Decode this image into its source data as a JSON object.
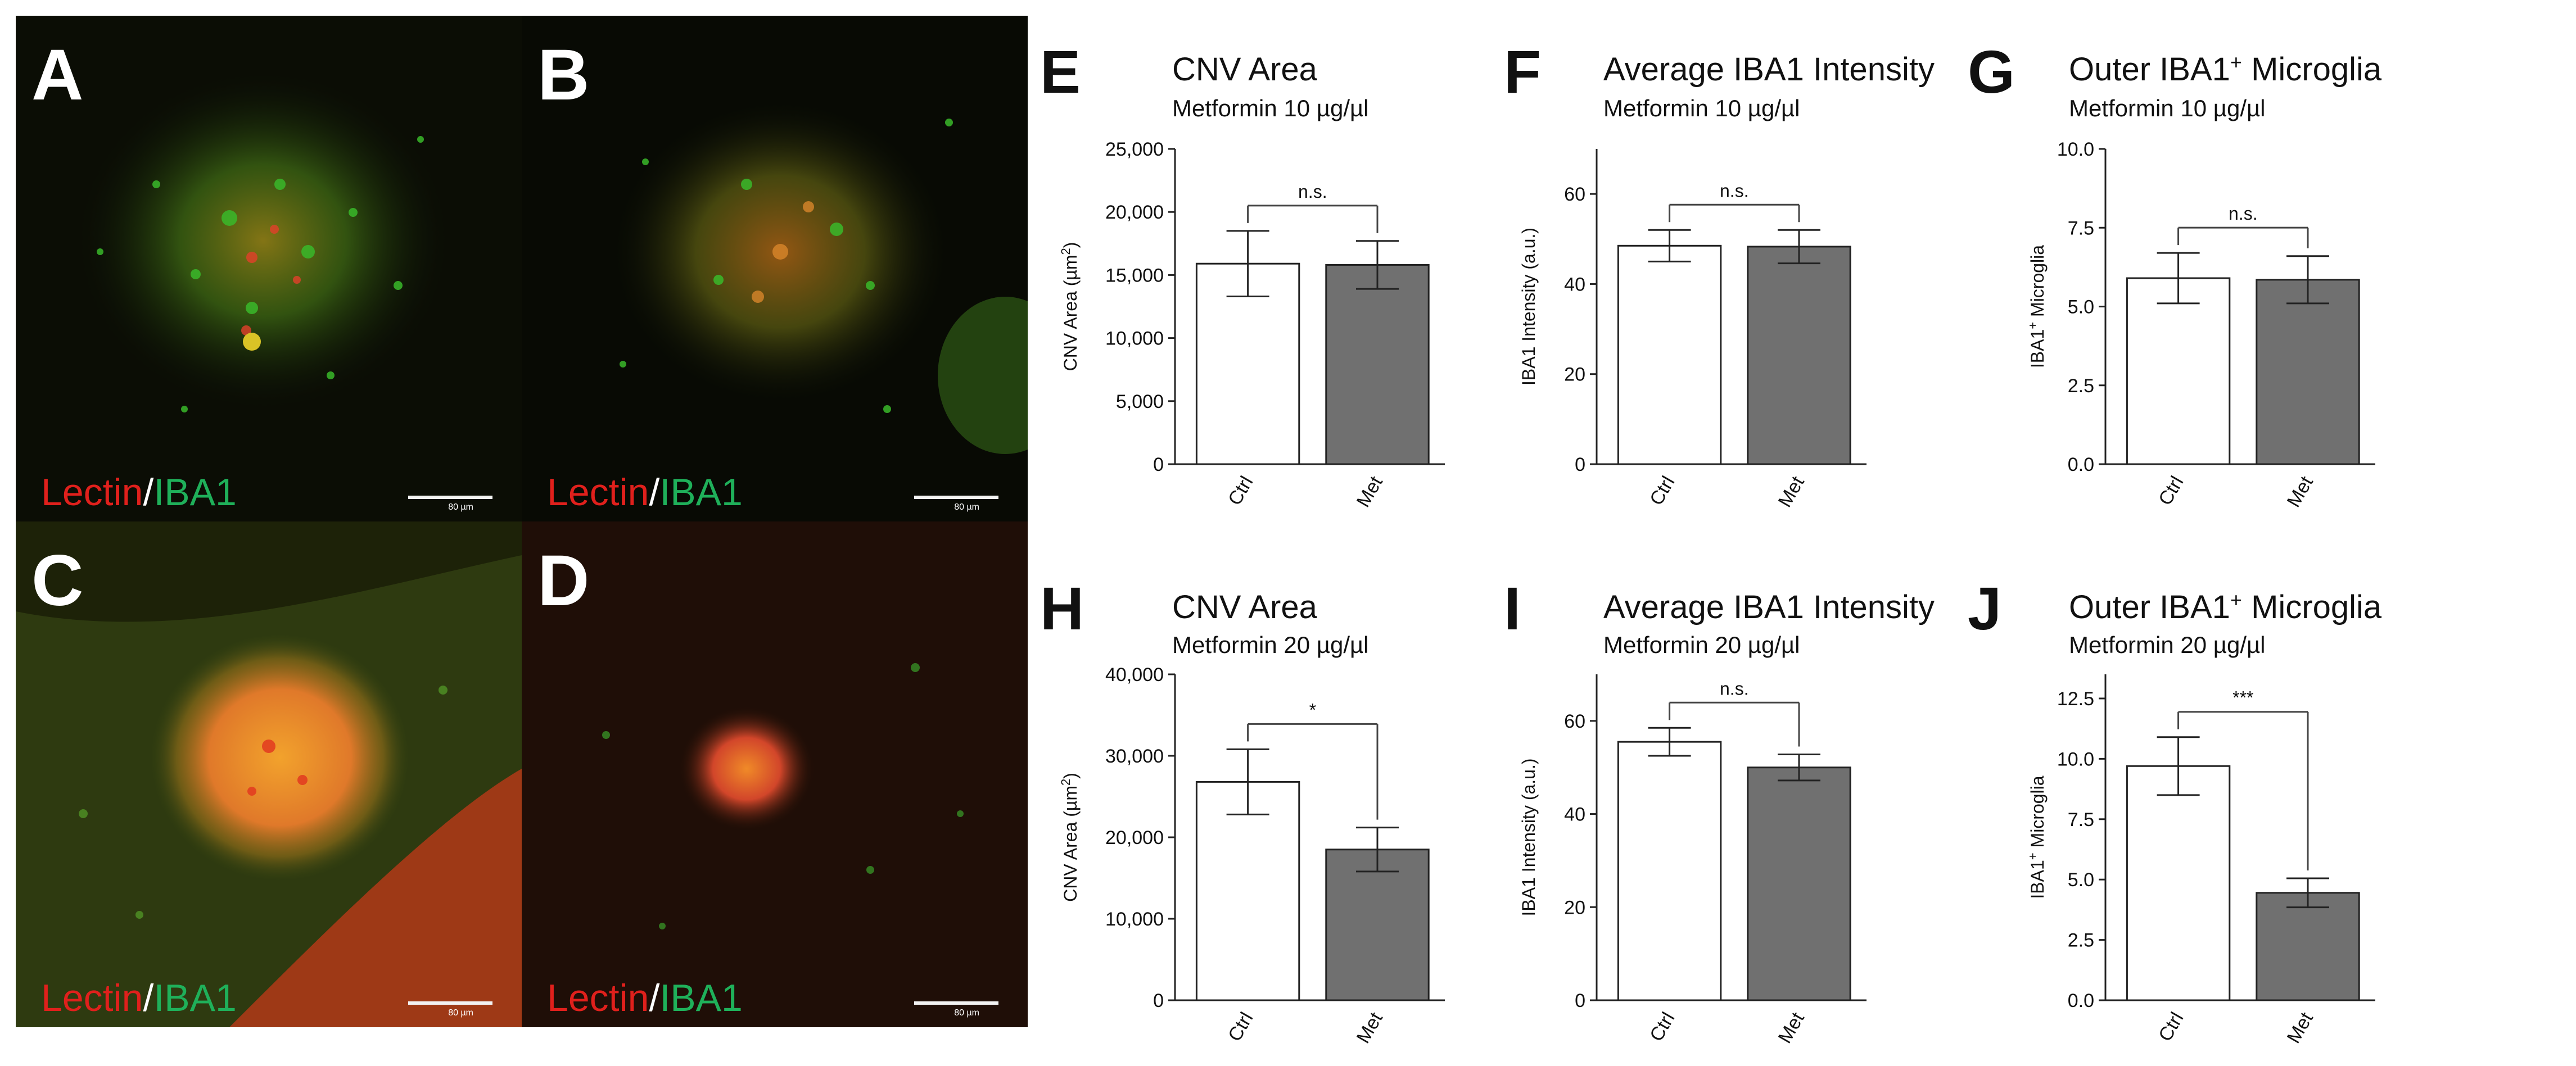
{
  "micrographs": [
    {
      "letter": "A",
      "stain_red": "Lectin",
      "stain_sep": "/",
      "stain_green": "IBA1",
      "scale_label": "80 µm"
    },
    {
      "letter": "B",
      "stain_red": "Lectin",
      "stain_sep": "/",
      "stain_green": "IBA1",
      "scale_label": "80 µm"
    },
    {
      "letter": "C",
      "stain_red": "Lectin",
      "stain_sep": "/",
      "stain_green": "IBA1",
      "scale_label": "80 µm"
    },
    {
      "letter": "D",
      "stain_red": "Lectin",
      "stain_sep": "/",
      "stain_green": "IBA1",
      "scale_label": "80 µm"
    }
  ],
  "colors": {
    "ctrl_fill": "#ffffff",
    "met_fill": "#707070",
    "stain_red": "#e0201c",
    "stain_green": "#1fb05a"
  },
  "chart_data": [
    {
      "panel": "E",
      "type": "bar",
      "title": "CNV Area",
      "subtitle": "Metformin 10 µg/µl",
      "ylabel": "CNV Area (µm²)",
      "ylabel_main": "CNV Area (µm",
      "ylabel_sup": "2",
      "ylabel_tail": ")",
      "categories": [
        "Ctrl",
        "Met"
      ],
      "values": [
        15900,
        15800
      ],
      "errors": [
        2600,
        1900
      ],
      "ylim": [
        0,
        25000
      ],
      "ticks": [
        "0",
        "5,000",
        "10,000",
        "15,000",
        "20,000",
        "25,000"
      ],
      "tick_values": [
        0,
        5000,
        10000,
        15000,
        20000,
        25000
      ],
      "significance": "n.s."
    },
    {
      "panel": "F",
      "type": "bar",
      "title": "Average IBA1 Intensity",
      "subtitle": "Metformin 10 µg/µl",
      "ylabel": "IBA1 Intensity (a.u.)",
      "ylabel_main": "IBA1 Intensity (a.u.)",
      "ylabel_sup": "",
      "ylabel_tail": "",
      "categories": [
        "Ctrl",
        "Met"
      ],
      "values": [
        48.5,
        48.3
      ],
      "errors": [
        3.5,
        3.7
      ],
      "ylim": [
        0,
        70
      ],
      "ticks": [
        "0",
        "20",
        "40",
        "60"
      ],
      "tick_values": [
        0,
        20,
        40,
        60
      ],
      "significance": "n.s."
    },
    {
      "panel": "G",
      "type": "bar",
      "title": "Outer IBA1⁺ Microglia",
      "title_main": "Outer IBA1",
      "title_sup": "+",
      "title_tail": " Microglia",
      "subtitle": "Metformin 10 µg/µl",
      "ylabel": "IBA1⁺ Microglia",
      "ylabel_main": "IBA1",
      "ylabel_sup": "+",
      "ylabel_tail": " Microglia",
      "categories": [
        "Ctrl",
        "Met"
      ],
      "values": [
        5.9,
        5.85
      ],
      "errors": [
        0.8,
        0.75
      ],
      "ylim": [
        0,
        10
      ],
      "ticks": [
        "0.0",
        "2.5",
        "5.0",
        "7.5",
        "10.0"
      ],
      "tick_values": [
        0,
        2.5,
        5,
        7.5,
        10
      ],
      "significance": "n.s."
    },
    {
      "panel": "H",
      "type": "bar",
      "title": "CNV Area",
      "subtitle": "Metformin 20 µg/µl",
      "ylabel": "CNV Area (µm²)",
      "ylabel_main": "CNV Area (µm",
      "ylabel_sup": "2",
      "ylabel_tail": ")",
      "categories": [
        "Ctrl",
        "Met"
      ],
      "values": [
        26800,
        18500
      ],
      "errors": [
        4000,
        2700
      ],
      "ylim": [
        0,
        40000
      ],
      "ticks": [
        "0",
        "10,000",
        "20,000",
        "30,000",
        "40,000"
      ],
      "tick_values": [
        0,
        10000,
        20000,
        30000,
        40000
      ],
      "significance": "*"
    },
    {
      "panel": "I",
      "type": "bar",
      "title": "Average IBA1 Intensity",
      "subtitle": "Metformin 20 µg/µl",
      "ylabel": "IBA1 Intensity (a.u.)",
      "ylabel_main": "IBA1 Intensity (a.u.)",
      "ylabel_sup": "",
      "ylabel_tail": "",
      "categories": [
        "Ctrl",
        "Met"
      ],
      "values": [
        55.5,
        50
      ],
      "errors": [
        3,
        2.8
      ],
      "ylim": [
        0,
        70
      ],
      "ticks": [
        "0",
        "20",
        "40",
        "60"
      ],
      "tick_values": [
        0,
        20,
        40,
        60
      ],
      "significance": "n.s."
    },
    {
      "panel": "J",
      "type": "bar",
      "title": "Outer IBA1⁺ Microglia",
      "title_main": "Outer IBA1",
      "title_sup": "+",
      "title_tail": " Microglia",
      "subtitle": "Metformin 20 µg/µl",
      "ylabel": "IBA1⁺ Microglia",
      "ylabel_main": "IBA1",
      "ylabel_sup": "+",
      "ylabel_tail": " Microglia",
      "categories": [
        "Ctrl",
        "Met"
      ],
      "values": [
        9.7,
        4.45
      ],
      "errors": [
        1.2,
        0.6
      ],
      "ylim": [
        0,
        13.5
      ],
      "ticks": [
        "0.0",
        "2.5",
        "5.0",
        "7.5",
        "10.0",
        "12.5"
      ],
      "tick_values": [
        0,
        2.5,
        5,
        7.5,
        10,
        12.5
      ],
      "significance": "***"
    }
  ]
}
